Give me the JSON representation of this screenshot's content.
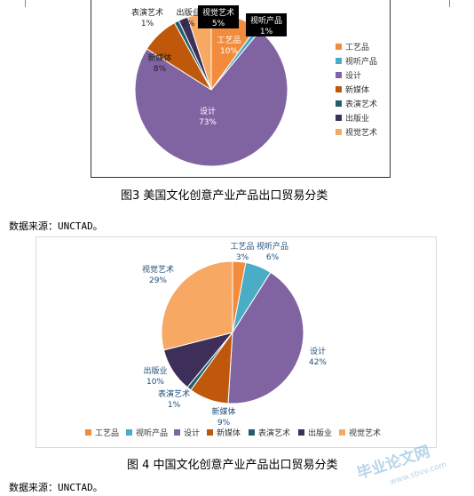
{
  "figure3": {
    "caption": "图3 美国文化创意产业产品出口贸易分类",
    "source": "数据来源：UNCTAD。"
  },
  "figure4": {
    "caption": "图 4 中国文化创意产业产品出口贸易分类",
    "source": "数据来源：UNCTAD。"
  },
  "watermark": {
    "main": "毕业论文网",
    "sub": "www.sbvv.com"
  },
  "chart_data": [
    {
      "type": "pie",
      "title": "",
      "categories": [
        "工艺品",
        "视听产品",
        "设计",
        "新媒体",
        "表演艺术",
        "出版业",
        "视觉艺术"
      ],
      "values": [
        10,
        1,
        73,
        8,
        1,
        2,
        5
      ],
      "data_labels": [
        "10%",
        "1%",
        "73%",
        "8%",
        "1%",
        "2%",
        "5%"
      ],
      "colors": [
        "#f28b3c",
        "#4bacc6",
        "#8064a2",
        "#c0580b",
        "#1f5f6e",
        "#3d2e5a",
        "#f7a863"
      ],
      "legend_position": "right"
    },
    {
      "type": "pie",
      "title": "",
      "categories": [
        "工艺品",
        "视听产品",
        "设计",
        "新媒体",
        "表演艺术",
        "出版业",
        "视觉艺术"
      ],
      "values": [
        3,
        6,
        42,
        9,
        1,
        10,
        29
      ],
      "data_labels": [
        "3%",
        "6%",
        "42%",
        "9%",
        "1%",
        "10%",
        "29%"
      ],
      "colors": [
        "#f28b3c",
        "#4bacc6",
        "#8064a2",
        "#c0580b",
        "#1f5f6e",
        "#3d2e5a",
        "#f7a863"
      ],
      "legend_position": "bottom"
    }
  ]
}
